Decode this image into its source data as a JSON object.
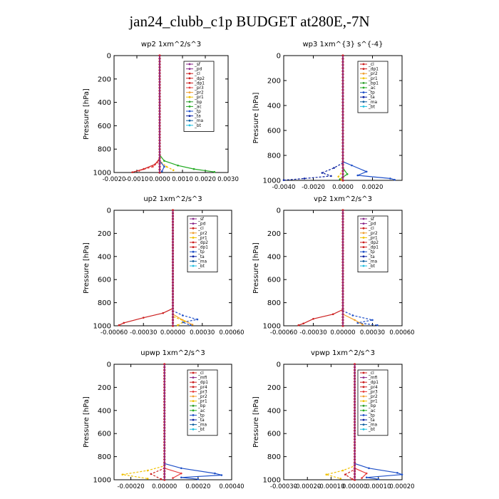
{
  "title": "jan24_clubb_c1p  BUDGET at280E,-7N",
  "colors": {
    "_sf": "#8b2a8b",
    "_pd": "#8b2a8b",
    "_cl": "#cc1f1f",
    "_dp2": "#cc1f1f",
    "_dp1": "#cc1f1f",
    "_pr3": "#e63c3c",
    "_pr2": "#f0a030",
    "_pr1": "#f0c000",
    "_bp": "#2ca02c",
    "_bp1": "#2ca02c",
    "_ac": "#22aa22",
    "_tp": "#1f50c8",
    "_ta": "#0a20a0",
    "_ma": "#1060a0",
    "_bt": "#20c0e0",
    "_mfl": "#8b2a8b",
    "_pr4": "#cc1f1f"
  },
  "chart_data": [
    {
      "type": "line",
      "title": "wp2  1xm^2/s^3",
      "ylabel": "Pressure [hPa]",
      "ylim": [
        1000,
        0
      ],
      "xlim": [
        -0.002,
        0.003
      ],
      "xticks": [
        "-0.0020",
        "-0.0010",
        "0.0000",
        "0.0010",
        "0.0020",
        "0.0030"
      ],
      "xtick_values": [
        -0.002,
        -0.001,
        0,
        0.001,
        0.002,
        0.003
      ],
      "yticks": [
        "0",
        "200",
        "400",
        "600",
        "800",
        "1000"
      ],
      "ytick_values": [
        0,
        200,
        400,
        600,
        800,
        1000
      ],
      "legend": [
        "_sf",
        "_pd",
        "_cl",
        "_dp2",
        "_dp1",
        "_pr3",
        "_pr2",
        "_pr1",
        "_bp",
        "_ac",
        "_tp",
        "_ta",
        "_ma",
        "_bt"
      ],
      "series": [
        {
          "name": "_ac",
          "values": [
            [
              0,
              0
            ],
            [
              0,
              850
            ],
            [
              0.0002,
              900
            ],
            [
              0.0008,
              940
            ],
            [
              0.0015,
              970
            ],
            [
              0.0024,
              995
            ]
          ]
        },
        {
          "name": "_pr1",
          "values": [
            [
              0,
              0
            ],
            [
              0,
              900
            ],
            [
              0.0003,
              950
            ],
            [
              0.0006,
              980
            ]
          ]
        },
        {
          "name": "_dp1",
          "values": [
            [
              0,
              0
            ],
            [
              0,
              880
            ],
            [
              -0.0002,
              930
            ],
            [
              -0.0007,
              970
            ],
            [
              -0.0012,
              998
            ]
          ]
        },
        {
          "name": "_pr3",
          "values": [
            [
              0,
              0
            ],
            [
              0,
              900
            ],
            [
              -0.0003,
              950
            ],
            [
              -0.0009,
              985
            ]
          ]
        },
        {
          "name": "_tp",
          "values": [
            [
              0,
              0
            ],
            [
              0,
              900
            ],
            [
              0.0002,
              950
            ],
            [
              0.0001,
              990
            ]
          ]
        },
        {
          "name": "_bt",
          "values": [
            [
              0,
              0
            ],
            [
              0,
              1000
            ]
          ]
        },
        {
          "name": "_pd",
          "values": [
            [
              0,
              0
            ],
            [
              0,
              1000
            ]
          ]
        }
      ]
    },
    {
      "type": "line",
      "title": "wp3  1xm^{3} s^{-4}",
      "ylabel": "Pressure [hPa]",
      "ylim": [
        1000,
        0
      ],
      "xlim": [
        -0.004,
        0.004
      ],
      "xticks": [
        "-0.0040",
        "-0.0020",
        "0.0000",
        "0.0020"
      ],
      "xtick_values": [
        -0.004,
        -0.002,
        0,
        0.002
      ],
      "yticks": [
        "0",
        "200",
        "400",
        "600",
        "800",
        "1000"
      ],
      "ytick_values": [
        0,
        200,
        400,
        600,
        800,
        1000
      ],
      "legend": [
        "_cl",
        "_dp1",
        "_pr2",
        "_pr1",
        "_bp1",
        "_ac",
        "_tp",
        "_ta",
        "_ma",
        "_bt"
      ],
      "series": [
        {
          "name": "_tp",
          "values": [
            [
              0,
              0
            ],
            [
              0,
              850
            ],
            [
              0.0006,
              880
            ],
            [
              0.0016,
              930
            ],
            [
              0.001,
              960
            ],
            [
              0.0032,
              985
            ],
            [
              0.0035,
              995
            ]
          ]
        },
        {
          "name": "_ta",
          "values": [
            [
              0,
              0
            ],
            [
              0,
              860
            ],
            [
              -0.0006,
              900
            ],
            [
              -0.0014,
              940
            ],
            [
              -0.0008,
              965
            ],
            [
              -0.0026,
              985
            ],
            [
              -0.004,
              998
            ]
          ]
        },
        {
          "name": "_ac",
          "values": [
            [
              0,
              0
            ],
            [
              0,
              900
            ],
            [
              0.0003,
              950
            ],
            [
              -0.0002,
              990
            ]
          ]
        },
        {
          "name": "_pr1",
          "values": [
            [
              0,
              0
            ],
            [
              0,
              920
            ],
            [
              -0.0003,
              970
            ],
            [
              -0.0001,
              995
            ]
          ]
        },
        {
          "name": "_dp1",
          "values": [
            [
              0,
              0
            ],
            [
              0,
              1000
            ]
          ]
        },
        {
          "name": "_cl",
          "values": [
            [
              0,
              0
            ],
            [
              0,
              1000
            ]
          ]
        }
      ]
    },
    {
      "type": "line",
      "title": "up2  1xm^2/s^3",
      "ylabel": "Pressure [hPa]",
      "ylim": [
        1000,
        0
      ],
      "xlim": [
        -0.0006,
        0.0006
      ],
      "xticks": [
        "-0.00060",
        "-0.00030",
        "0.00000",
        "0.00030",
        "0.00060"
      ],
      "xtick_values": [
        -0.0006,
        -0.0003,
        0,
        0.0003,
        0.0006
      ],
      "yticks": [
        "0",
        "200",
        "400",
        "600",
        "800",
        "1000"
      ],
      "ytick_values": [
        0,
        200,
        400,
        600,
        800,
        1000
      ],
      "legend": [
        "_sf",
        "_pd",
        "_cl",
        "_pr2",
        "_pr1",
        "_dp2",
        "_dp1",
        "_tp",
        "_ta",
        "_ma",
        "_bt"
      ],
      "series": [
        {
          "name": "_dp2",
          "values": [
            [
              0,
              0
            ],
            [
              0,
              850
            ],
            [
              -0.0001,
              890
            ],
            [
              -0.0003,
              930
            ],
            [
              -0.0005,
              975
            ],
            [
              -0.00055,
              995
            ]
          ]
        },
        {
          "name": "_tp",
          "values": [
            [
              0,
              0
            ],
            [
              0,
              870
            ],
            [
              0.0001,
              910
            ],
            [
              0.00025,
              945
            ],
            [
              0.0001,
              970
            ],
            [
              0.00018,
              995
            ]
          ]
        },
        {
          "name": "_pr2",
          "values": [
            [
              0,
              0
            ],
            [
              0,
              900
            ],
            [
              0.0001,
              950
            ],
            [
              0.0002,
              990
            ]
          ]
        },
        {
          "name": "_pr1",
          "values": [
            [
              0,
              0
            ],
            [
              0,
              920
            ],
            [
              0.00012,
              960
            ],
            [
              5e-05,
              995
            ]
          ]
        },
        {
          "name": "_cl",
          "values": [
            [
              0,
              0
            ],
            [
              0,
              1000
            ]
          ]
        }
      ]
    },
    {
      "type": "line",
      "title": "vp2  1xm^2/s^3",
      "ylabel": "Pressure [hPa]",
      "ylim": [
        1000,
        0
      ],
      "xlim": [
        -0.0006,
        0.0006
      ],
      "xticks": [
        "-0.00060",
        "-0.00030",
        "0.00000",
        "0.00030",
        "0.00060"
      ],
      "xtick_values": [
        -0.0006,
        -0.0003,
        0,
        0.0003,
        0.0006
      ],
      "yticks": [
        "0",
        "200",
        "400",
        "600",
        "800",
        "1000"
      ],
      "ytick_values": [
        0,
        200,
        400,
        600,
        800,
        1000
      ],
      "legend": [
        "_sf",
        "_pd",
        "_cl",
        "_pr2",
        "_pr1",
        "_dp2",
        "_dp1",
        "_tp",
        "_ta",
        "_ma",
        "_bt"
      ],
      "series": [
        {
          "name": "_dp2",
          "values": [
            [
              0,
              0
            ],
            [
              0,
              860
            ],
            [
              -0.0001,
              900
            ],
            [
              -0.0003,
              940
            ],
            [
              -0.0004,
              980
            ],
            [
              -0.00045,
              995
            ]
          ]
        },
        {
          "name": "_tp",
          "values": [
            [
              0,
              0
            ],
            [
              0,
              870
            ],
            [
              0.0001,
              910
            ],
            [
              0.0003,
              950
            ],
            [
              0.00015,
              975
            ],
            [
              0.00035,
              995
            ]
          ]
        },
        {
          "name": "_pr2",
          "values": [
            [
              0,
              0
            ],
            [
              0,
              900
            ],
            [
              0.00012,
              950
            ],
            [
              0.0002,
              990
            ]
          ]
        },
        {
          "name": "_cl",
          "values": [
            [
              0,
              0
            ],
            [
              0,
              1000
            ]
          ]
        }
      ]
    },
    {
      "type": "line",
      "title": "upwp  1xm^2/s^3",
      "ylabel": "Pressure [hPa]",
      "ylim": [
        1000,
        0
      ],
      "xlim": [
        -0.0003,
        0.0004
      ],
      "xticks": [
        "-0.00020",
        "0.00000",
        "0.00020",
        "0.00040"
      ],
      "xtick_values": [
        -0.0002,
        0,
        0.0002,
        0.0004
      ],
      "yticks": [
        "0",
        "200",
        "400",
        "600",
        "800",
        "1000"
      ],
      "ytick_values": [
        0,
        200,
        400,
        600,
        800,
        1000
      ],
      "legend": [
        "_cl",
        "_mfl",
        "_dp1",
        "_pr4",
        "_pr3",
        "_pr2",
        "_pr1",
        "_bp",
        "_ac",
        "_tp",
        "_ta",
        "_ma",
        "_bt"
      ],
      "series": [
        {
          "name": "_tp",
          "values": [
            [
              0,
              0
            ],
            [
              0,
              860
            ],
            [
              0.0001,
              900
            ],
            [
              0.0003,
              945
            ],
            [
              0.00034,
              960
            ],
            [
              0.0001,
              980
            ],
            [
              0.0002,
              995
            ]
          ]
        },
        {
          "name": "_pr1",
          "values": [
            [
              0,
              0
            ],
            [
              0,
              880
            ],
            [
              -0.0001,
              920
            ],
            [
              -0.00025,
              955
            ],
            [
              -0.0001,
              990
            ]
          ]
        },
        {
          "name": "_pr3",
          "values": [
            [
              0,
              0
            ],
            [
              0,
              900
            ],
            [
              0.0001,
              945
            ],
            [
              5e-05,
              985
            ]
          ]
        },
        {
          "name": "_dp1",
          "values": [
            [
              0,
              0
            ],
            [
              0,
              900
            ],
            [
              -8e-05,
              950
            ],
            [
              -2e-05,
              995
            ]
          ]
        },
        {
          "name": "_cl",
          "values": [
            [
              0,
              0
            ],
            [
              0,
              1000
            ]
          ]
        }
      ]
    },
    {
      "type": "line",
      "title": "vpwp  1xm^2/s^3",
      "ylabel": "Pressure [hPa]",
      "ylim": [
        1000,
        0
      ],
      "xlim": [
        -0.0003,
        0.0002
      ],
      "xticks": [
        "-0.00030",
        "-0.00020",
        "-0.00010",
        "0.00000",
        "0.00010",
        "0.00020"
      ],
      "xtick_values": [
        -0.0003,
        -0.0002,
        -0.0001,
        0,
        0.0001,
        0.0002
      ],
      "yticks": [
        "0",
        "200",
        "400",
        "600",
        "800",
        "1000"
      ],
      "ytick_values": [
        0,
        200,
        400,
        600,
        800,
        1000
      ],
      "legend": [
        "_cl",
        "_mfl",
        "_dp1",
        "_pr4",
        "_pr3",
        "_pr2",
        "_pr1",
        "_bp",
        "_ac",
        "_tp",
        "_ta",
        "_ma",
        "_bt"
      ],
      "series": [
        {
          "name": "_tp",
          "values": [
            [
              0,
              0
            ],
            [
              0,
              860
            ],
            [
              6e-05,
              900
            ],
            [
              0.00018,
              940
            ],
            [
              0.0002,
              955
            ],
            [
              5e-05,
              980
            ],
            [
              0.0001,
              995
            ]
          ]
        },
        {
          "name": "_pr1",
          "values": [
            [
              0,
              0
            ],
            [
              0,
              880
            ],
            [
              -5e-05,
              920
            ],
            [
              -0.00012,
              955
            ],
            [
              -6e-05,
              990
            ]
          ]
        },
        {
          "name": "_pr3",
          "values": [
            [
              0,
              0
            ],
            [
              0,
              900
            ],
            [
              5e-05,
              945
            ],
            [
              3e-05,
              985
            ]
          ]
        },
        {
          "name": "_dp1",
          "values": [
            [
              0,
              0
            ],
            [
              0,
              910
            ],
            [
              -4e-05,
              955
            ],
            [
              -1e-05,
              995
            ]
          ]
        },
        {
          "name": "_cl",
          "values": [
            [
              0,
              0
            ],
            [
              0,
              1000
            ]
          ]
        }
      ]
    }
  ]
}
